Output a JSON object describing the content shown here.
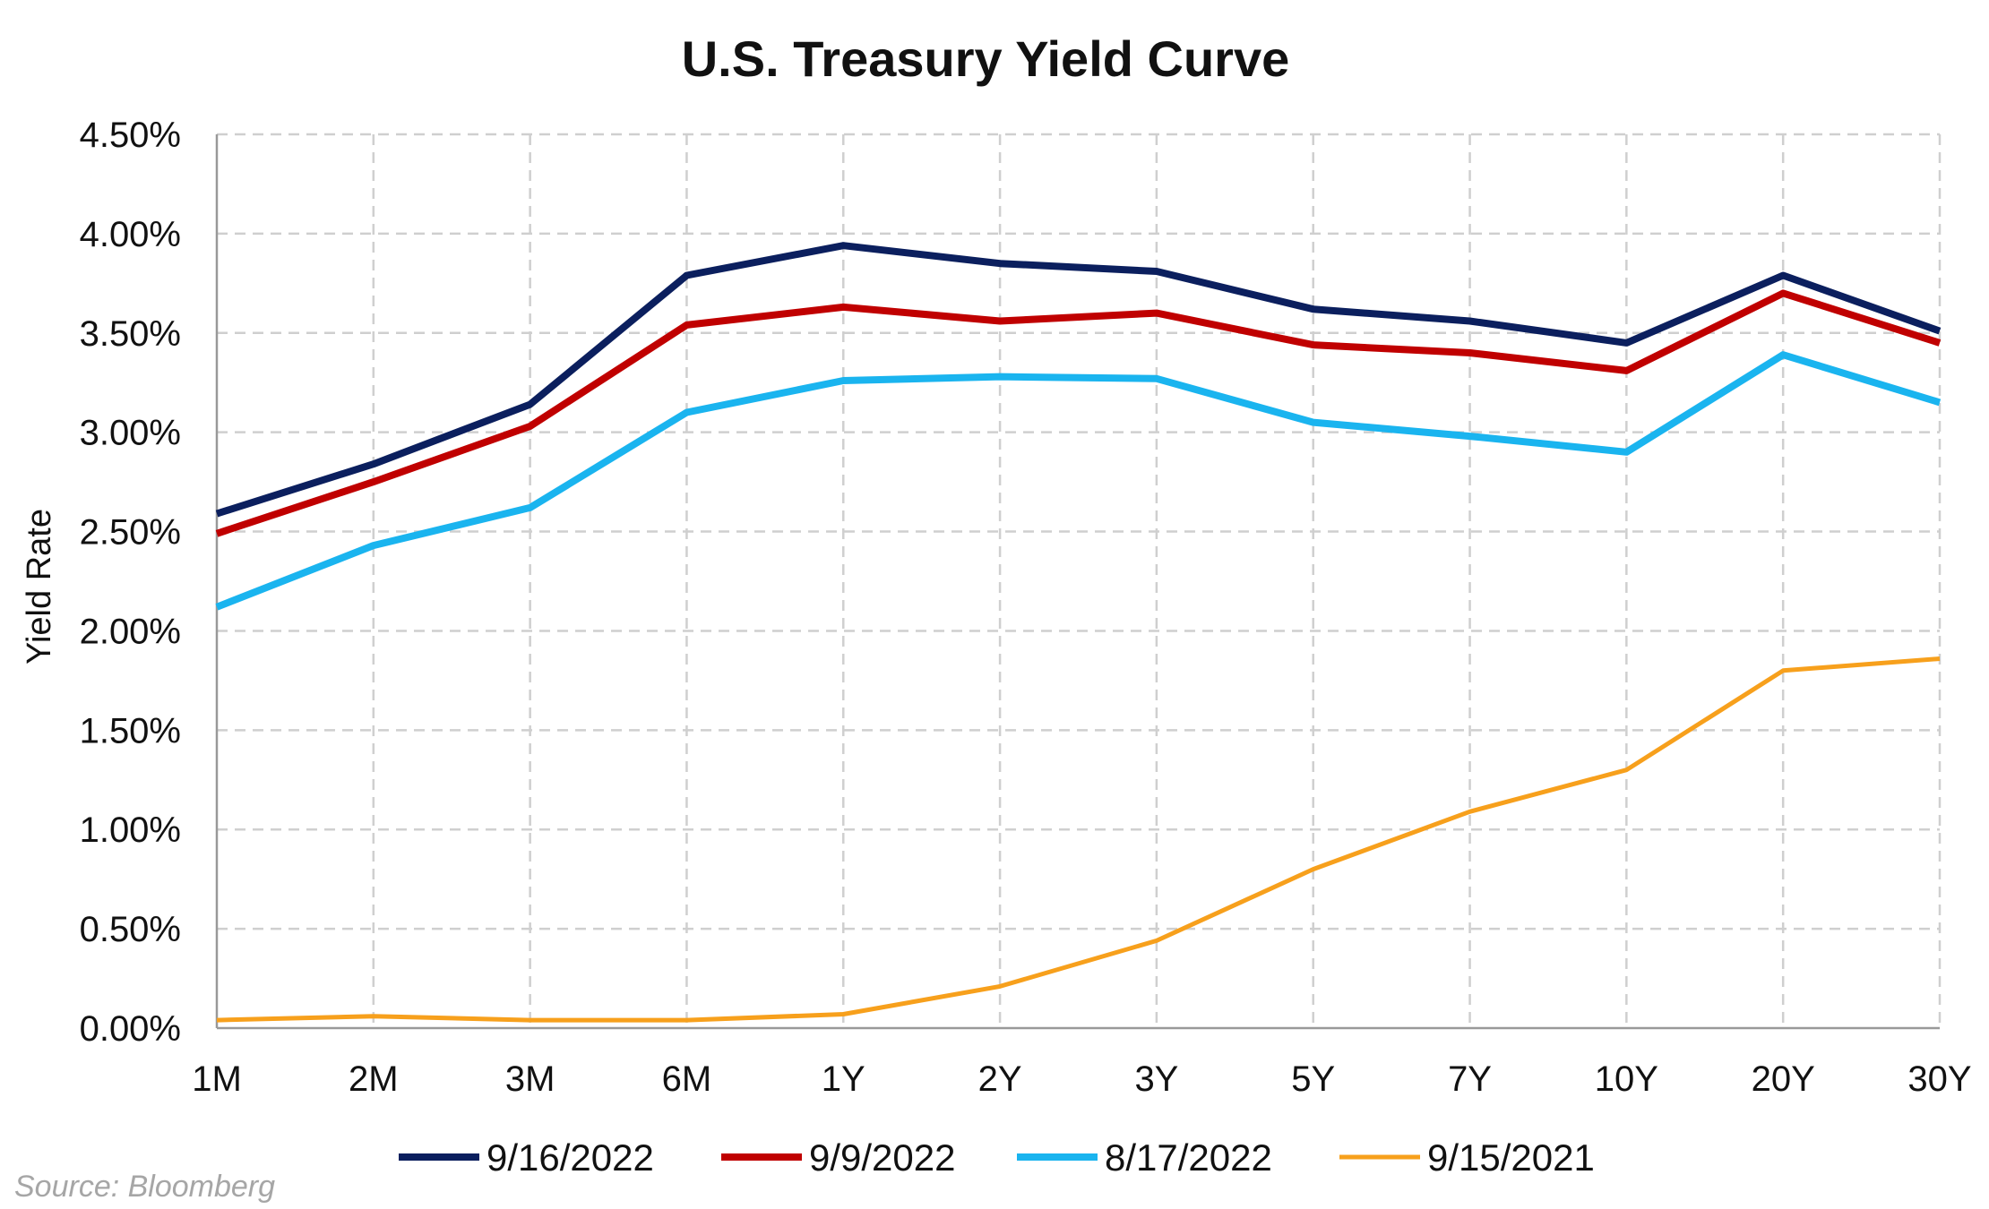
{
  "chart_data": {
    "type": "line",
    "title": "U.S. Treasury Yield Curve",
    "xlabel": "",
    "ylabel": "Yield Rate",
    "categories": [
      "1M",
      "2M",
      "3M",
      "6M",
      "1Y",
      "2Y",
      "3Y",
      "5Y",
      "7Y",
      "10Y",
      "20Y",
      "30Y"
    ],
    "ylim": [
      0,
      4.5
    ],
    "yticks": [
      "0.00%",
      "0.50%",
      "1.00%",
      "1.50%",
      "2.00%",
      "2.50%",
      "3.00%",
      "3.50%",
      "4.00%",
      "4.50%"
    ],
    "grid": true,
    "legend_position": "bottom",
    "series": [
      {
        "name": "9/16/2022",
        "color": "#0b1f5e",
        "values": [
          2.59,
          2.84,
          3.14,
          3.79,
          3.94,
          3.85,
          3.81,
          3.62,
          3.56,
          3.45,
          3.79,
          3.51
        ]
      },
      {
        "name": "9/9/2022",
        "color": "#c00000",
        "values": [
          2.49,
          2.75,
          3.03,
          3.54,
          3.63,
          3.56,
          3.6,
          3.44,
          3.4,
          3.31,
          3.7,
          3.45
        ]
      },
      {
        "name": "8/17/2022",
        "color": "#1ab4ef",
        "values": [
          2.12,
          2.43,
          2.62,
          3.1,
          3.26,
          3.28,
          3.27,
          3.05,
          2.98,
          2.9,
          3.39,
          3.15
        ]
      },
      {
        "name": "9/15/2021",
        "color": "#f7a01c",
        "values": [
          0.04,
          0.06,
          0.04,
          0.04,
          0.07,
          0.21,
          0.44,
          0.8,
          1.09,
          1.3,
          1.8,
          1.86
        ]
      }
    ]
  },
  "source": "Source: Bloomberg",
  "colors": {
    "grid": "#cfcfcf",
    "axis": "#999999"
  }
}
